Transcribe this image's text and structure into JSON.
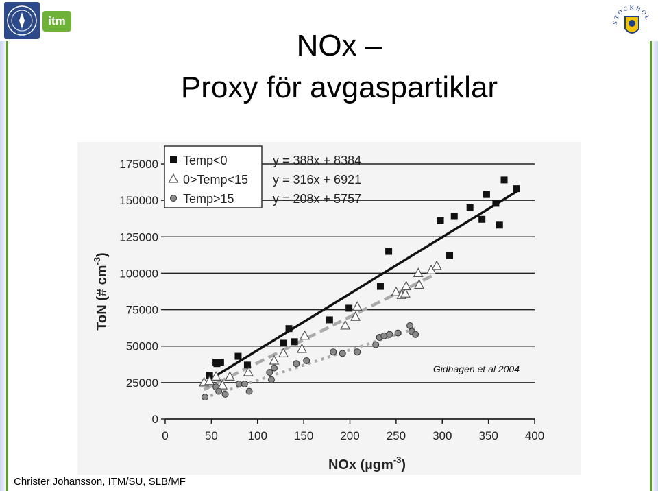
{
  "slide": {
    "title_line1": "NOx –",
    "title_line2": "Proxy för avgaspartiklar",
    "footer": "Christer Johansson, ITM/SU, SLB/MF",
    "logo_itm": "itm",
    "logo_stockholm_text": "STOCKHOLMS STAD"
  },
  "colors": {
    "accent_green": "#5aa02c",
    "su_blue": "#2c4a8a",
    "itm_green": "#6fb23a"
  },
  "chart_data": {
    "type": "scatter",
    "xlabel": "NOx (µgm",
    "xlabel_sup": "-3",
    "xlabel_end": ")",
    "ylabel": "ToN (# cm",
    "ylabel_sup": "-3",
    "ylabel_end": ")",
    "xlim": [
      0,
      400
    ],
    "ylim": [
      0,
      175000
    ],
    "xticks": [
      0,
      50,
      100,
      150,
      200,
      250,
      300,
      350,
      400
    ],
    "yticks": [
      0,
      25000,
      50000,
      75000,
      100000,
      125000,
      150000,
      175000
    ],
    "grid": "horizontal",
    "legend_position": "top-left",
    "annotation": "Gidhagen et al 2004",
    "series": [
      {
        "name": "Temp<0",
        "marker": "square",
        "equation": "y = 388x + 8384",
        "fit": {
          "slope": 388,
          "intercept": 8384,
          "x_range": [
            48,
            381
          ]
        },
        "points": [
          [
            48,
            30000
          ],
          [
            55,
            39000
          ],
          [
            56,
            38000
          ],
          [
            60,
            39000
          ],
          [
            79,
            43000
          ],
          [
            89,
            37000
          ],
          [
            128,
            52000
          ],
          [
            134,
            62000
          ],
          [
            140,
            53000
          ],
          [
            178,
            68000
          ],
          [
            199,
            76000
          ],
          [
            233,
            91000
          ],
          [
            242,
            115000
          ],
          [
            298,
            136000
          ],
          [
            308,
            112000
          ],
          [
            313,
            139000
          ],
          [
            330,
            145000
          ],
          [
            343,
            137000
          ],
          [
            348,
            154000
          ],
          [
            358,
            148000
          ],
          [
            362,
            133000
          ],
          [
            367,
            164000
          ],
          [
            380,
            158000
          ]
        ]
      },
      {
        "name": "0>Temp<15",
        "marker": "triangle",
        "equation": "y = 316x + 6921",
        "fit": {
          "slope": 316,
          "intercept": 6921,
          "x_range": [
            42,
            292
          ]
        },
        "points": [
          [
            42,
            25000
          ],
          [
            48,
            26000
          ],
          [
            55,
            29000
          ],
          [
            62,
            23000
          ],
          [
            70,
            29000
          ],
          [
            90,
            32000
          ],
          [
            118,
            40000
          ],
          [
            128,
            45000
          ],
          [
            148,
            48000
          ],
          [
            151,
            57000
          ],
          [
            195,
            64000
          ],
          [
            206,
            70000
          ],
          [
            208,
            77000
          ],
          [
            250,
            87000
          ],
          [
            256,
            85000
          ],
          [
            260,
            86000
          ],
          [
            261,
            91000
          ],
          [
            274,
            100000
          ],
          [
            275,
            92000
          ],
          [
            288,
            102000
          ],
          [
            294,
            105000
          ]
        ]
      },
      {
        "name": "Temp>15",
        "marker": "circle",
        "equation": "y = 208x + 5757",
        "fit": {
          "slope": 208,
          "intercept": 5757,
          "x_range": [
            42,
            274
          ]
        },
        "points": [
          [
            43,
            15000
          ],
          [
            55,
            22000
          ],
          [
            58,
            19000
          ],
          [
            65,
            17000
          ],
          [
            80,
            24000
          ],
          [
            86,
            24000
          ],
          [
            91,
            19000
          ],
          [
            113,
            32000
          ],
          [
            115,
            27000
          ],
          [
            118,
            35000
          ],
          [
            142,
            38000
          ],
          [
            153,
            40000
          ],
          [
            182,
            46000
          ],
          [
            192,
            45000
          ],
          [
            208,
            46000
          ],
          [
            228,
            51000
          ],
          [
            232,
            56000
          ],
          [
            237,
            57000
          ],
          [
            243,
            58000
          ],
          [
            252,
            59000
          ],
          [
            265,
            64000
          ],
          [
            267,
            60000
          ],
          [
            271,
            58000
          ]
        ]
      }
    ]
  }
}
